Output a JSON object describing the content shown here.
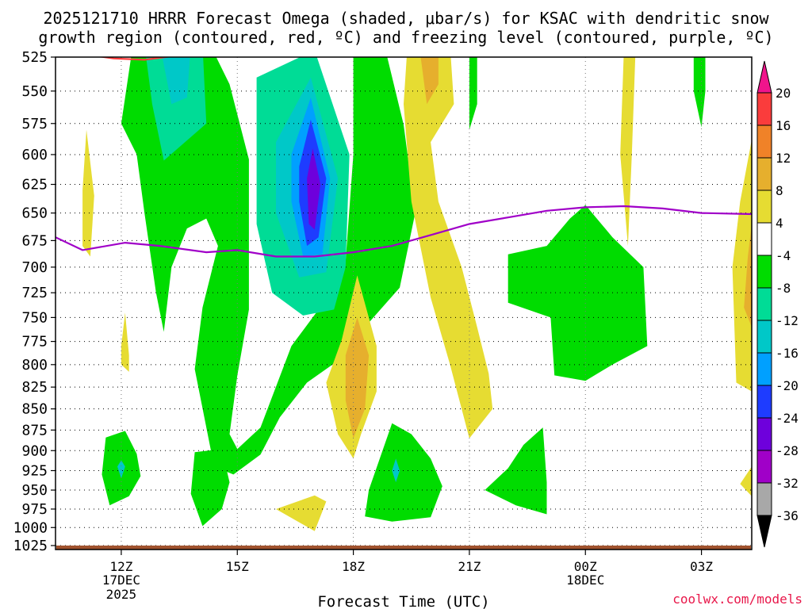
{
  "chart_data": {
    "type": "heatmap",
    "title_line1": "2025121710 HRRR Forecast Omega (shaded, μbar/s) for KSAC with dendritic snow",
    "title_line2": "growth region (contoured, red, ºC) and freezing level (contoured, purple, ºC)",
    "xlabel": "Forecast Time (UTC)",
    "credit": "coolwx.com/models",
    "x_range_hours": [
      10.3,
      28.3
    ],
    "x_ticks": [
      {
        "hour": 12,
        "label": "12Z",
        "sub1": "17DEC",
        "sub2": "2025"
      },
      {
        "hour": 15,
        "label": "15Z",
        "sub1": "",
        "sub2": ""
      },
      {
        "hour": 18,
        "label": "18Z",
        "sub1": "",
        "sub2": ""
      },
      {
        "hour": 21,
        "label": "21Z",
        "sub1": "",
        "sub2": ""
      },
      {
        "hour": 24,
        "label": "00Z",
        "sub1": "18DEC",
        "sub2": ""
      },
      {
        "hour": 27,
        "label": "03Z",
        "sub1": "",
        "sub2": ""
      }
    ],
    "y_levels_mb": [
      525,
      550,
      575,
      600,
      625,
      650,
      675,
      700,
      725,
      750,
      775,
      800,
      825,
      850,
      875,
      900,
      925,
      950,
      975,
      1000,
      1025
    ],
    "y_labels": [
      "525",
      "550",
      "575",
      "600",
      "625",
      "650",
      "675",
      "700",
      "725",
      "750",
      "775",
      "800",
      "825",
      "850",
      "875",
      "900",
      "925",
      "950",
      "975",
      "1000",
      "1025"
    ],
    "colorbar": {
      "bounds": [
        -36,
        -32,
        -28,
        -24,
        -20,
        -16,
        -12,
        -8,
        -4,
        4,
        8,
        12,
        16,
        20
      ],
      "labels": [
        "-36",
        "-32",
        "-28",
        "-24",
        "-20",
        "-16",
        "-12",
        "-8",
        "-4",
        "4",
        "8",
        "12",
        "16",
        "20"
      ],
      "colors": [
        "#a8a8a8",
        "#a000c8",
        "#6e00dc",
        "#1e3cff",
        "#00a0ff",
        "#00c8c8",
        "#00dc96",
        "#00dc00",
        "#ffffff",
        "#e6dc32",
        "#e6af2d",
        "#f08228",
        "#fa3c3c"
      ],
      "under_color": "#000000",
      "over_color": "#f0148c"
    },
    "freezing_level": {
      "color": "#a000c8",
      "points": [
        [
          10.3,
          672
        ],
        [
          11.0,
          684
        ],
        [
          12.1,
          677
        ],
        [
          13.0,
          680
        ],
        [
          14.2,
          686
        ],
        [
          15.0,
          684
        ],
        [
          16.0,
          690
        ],
        [
          17.0,
          690
        ],
        [
          18.0,
          686
        ],
        [
          19.0,
          680
        ],
        [
          20.0,
          670
        ],
        [
          21.0,
          660
        ],
        [
          22.0,
          654
        ],
        [
          23.0,
          648
        ],
        [
          24.0,
          645
        ],
        [
          25.0,
          644
        ],
        [
          26.0,
          646
        ],
        [
          27.0,
          650
        ],
        [
          28.3,
          651
        ]
      ]
    },
    "dgz_contour": {
      "color": "#ff3c3c",
      "points": [
        [
          11.3,
          524
        ],
        [
          11.8,
          526
        ],
        [
          12.6,
          527
        ],
        [
          13.4,
          524
        ]
      ]
    },
    "surface_color": "#a0522d",
    "shaded_regions": [
      {
        "cls": 7,
        "pts": [
          [
            12.3,
            516
          ],
          [
            14.3,
            516
          ],
          [
            14.8,
            545
          ],
          [
            15.3,
            604
          ],
          [
            15.3,
            742
          ],
          [
            15.0,
            812
          ],
          [
            14.8,
            880
          ],
          [
            15.0,
            898
          ],
          [
            15.6,
            872
          ],
          [
            16.4,
            780
          ],
          [
            17.1,
            742
          ],
          [
            17.8,
            695
          ],
          [
            18.0,
            600
          ],
          [
            18.0,
            516
          ],
          [
            18.8,
            516
          ],
          [
            19.3,
            576
          ],
          [
            19.6,
            650
          ],
          [
            19.2,
            720
          ],
          [
            18.3,
            760
          ],
          [
            17.8,
            790
          ],
          [
            16.8,
            820
          ],
          [
            16.1,
            860
          ],
          [
            15.6,
            905
          ],
          [
            14.9,
            930
          ],
          [
            14.4,
            920
          ],
          [
            13.9,
            805
          ],
          [
            14.1,
            740
          ],
          [
            14.5,
            680
          ],
          [
            14.2,
            655
          ],
          [
            13.7,
            664
          ],
          [
            13.3,
            700
          ],
          [
            13.1,
            765
          ],
          [
            12.9,
            725
          ],
          [
            12.6,
            650
          ],
          [
            12.4,
            600
          ],
          [
            12.0,
            575
          ],
          [
            12.3,
            516
          ]
        ]
      },
      {
        "cls": 7,
        "pts": [
          [
            13.9,
            902
          ],
          [
            14.6,
            898
          ],
          [
            14.8,
            940
          ],
          [
            14.6,
            975
          ],
          [
            14.1,
            998
          ],
          [
            13.8,
            955
          ],
          [
            13.9,
            902
          ]
        ]
      },
      {
        "cls": 7,
        "pts": [
          [
            11.6,
            884
          ],
          [
            12.1,
            876
          ],
          [
            12.4,
            904
          ],
          [
            12.5,
            932
          ],
          [
            12.2,
            958
          ],
          [
            11.7,
            970
          ],
          [
            11.5,
            930
          ],
          [
            11.6,
            884
          ]
        ]
      },
      {
        "cls": 7,
        "pts": [
          [
            18.4,
            950
          ],
          [
            19.0,
            867
          ],
          [
            19.5,
            880
          ],
          [
            20.0,
            910
          ],
          [
            20.3,
            945
          ],
          [
            20.0,
            986
          ],
          [
            19.0,
            992
          ],
          [
            18.3,
            985
          ],
          [
            18.4,
            950
          ]
        ]
      },
      {
        "cls": 7,
        "pts": [
          [
            23.0,
            680
          ],
          [
            23.6,
            655
          ],
          [
            24.0,
            643
          ],
          [
            24.7,
            672
          ],
          [
            25.5,
            700
          ],
          [
            25.6,
            780
          ],
          [
            24.7,
            800
          ],
          [
            24.0,
            818
          ],
          [
            23.2,
            812
          ],
          [
            23.1,
            750
          ],
          [
            22.0,
            735
          ],
          [
            22.0,
            688
          ],
          [
            23.0,
            680
          ]
        ]
      },
      {
        "cls": 7,
        "pts": [
          [
            21.4,
            950
          ],
          [
            22.0,
            922
          ],
          [
            22.4,
            893
          ],
          [
            22.9,
            872
          ],
          [
            23.0,
            940
          ],
          [
            23.0,
            982
          ],
          [
            22.2,
            970
          ],
          [
            21.4,
            950
          ]
        ]
      },
      {
        "cls": 7,
        "pts": [
          [
            21.0,
            516
          ],
          [
            21.2,
            516
          ],
          [
            21.2,
            560
          ],
          [
            21.0,
            580
          ],
          [
            21.0,
            516
          ]
        ]
      },
      {
        "cls": 7,
        "pts": [
          [
            26.8,
            516
          ],
          [
            27.1,
            516
          ],
          [
            27.1,
            550
          ],
          [
            27.0,
            578
          ],
          [
            26.8,
            550
          ],
          [
            26.8,
            516
          ]
        ]
      },
      {
        "cls": 6,
        "pts": [
          [
            12.6,
            516
          ],
          [
            14.1,
            516
          ],
          [
            14.2,
            575
          ],
          [
            13.1,
            605
          ],
          [
            12.8,
            560
          ],
          [
            12.6,
            516
          ]
        ]
      },
      {
        "cls": 6,
        "pts": [
          [
            15.5,
            540
          ],
          [
            17.0,
            520
          ],
          [
            17.9,
            600
          ],
          [
            17.8,
            700
          ],
          [
            17.5,
            742
          ],
          [
            16.7,
            748
          ],
          [
            15.9,
            725
          ],
          [
            15.5,
            660
          ],
          [
            15.5,
            540
          ]
        ]
      },
      {
        "cls": 5,
        "pts": [
          [
            13.0,
            516
          ],
          [
            13.8,
            516
          ],
          [
            13.7,
            555
          ],
          [
            13.3,
            560
          ],
          [
            13.0,
            516
          ]
        ]
      },
      {
        "cls": 5,
        "pts": [
          [
            16.0,
            590
          ],
          [
            16.9,
            540
          ],
          [
            17.6,
            620
          ],
          [
            17.3,
            705
          ],
          [
            16.6,
            710
          ],
          [
            16.0,
            650
          ],
          [
            16.0,
            590
          ]
        ]
      },
      {
        "cls": 5,
        "pts": [
          [
            12.0,
            912
          ],
          [
            12.1,
            920
          ],
          [
            12.0,
            935
          ],
          [
            11.9,
            920
          ],
          [
            12.0,
            912
          ]
        ]
      },
      {
        "cls": 5,
        "pts": [
          [
            19.1,
            910
          ],
          [
            19.2,
            925
          ],
          [
            19.1,
            940
          ],
          [
            19.0,
            925
          ],
          [
            19.1,
            910
          ]
        ]
      },
      {
        "cls": 4,
        "pts": [
          [
            16.4,
            600
          ],
          [
            16.9,
            555
          ],
          [
            17.4,
            620
          ],
          [
            17.2,
            688
          ],
          [
            16.7,
            690
          ],
          [
            16.4,
            640
          ],
          [
            16.4,
            600
          ]
        ]
      },
      {
        "cls": 3,
        "pts": [
          [
            16.6,
            610
          ],
          [
            16.9,
            572
          ],
          [
            17.3,
            620
          ],
          [
            17.1,
            672
          ],
          [
            16.8,
            680
          ],
          [
            16.6,
            640
          ],
          [
            16.6,
            610
          ]
        ]
      },
      {
        "cls": 2,
        "pts": [
          [
            16.8,
            620
          ],
          [
            16.95,
            595
          ],
          [
            17.15,
            625
          ],
          [
            17.0,
            665
          ],
          [
            16.85,
            660
          ],
          [
            16.8,
            620
          ]
        ]
      },
      {
        "cls": 9,
        "pts": [
          [
            19.4,
            516
          ],
          [
            20.5,
            516
          ],
          [
            20.6,
            560
          ],
          [
            20.0,
            590
          ],
          [
            20.2,
            640
          ],
          [
            20.8,
            700
          ],
          [
            21.2,
            760
          ],
          [
            21.5,
            810
          ],
          [
            21.6,
            850
          ],
          [
            21.0,
            885
          ],
          [
            20.5,
            800
          ],
          [
            20.0,
            730
          ],
          [
            19.5,
            640
          ],
          [
            19.3,
            560
          ],
          [
            19.4,
            516
          ]
        ]
      },
      {
        "cls": 10,
        "pts": [
          [
            19.7,
            516
          ],
          [
            20.2,
            516
          ],
          [
            20.2,
            545
          ],
          [
            19.9,
            560
          ],
          [
            19.7,
            516
          ]
        ]
      },
      {
        "cls": 9,
        "pts": [
          [
            17.7,
            773
          ],
          [
            18.1,
            708
          ],
          [
            18.6,
            780
          ],
          [
            18.6,
            830
          ],
          [
            18.2,
            880
          ],
          [
            18.0,
            910
          ],
          [
            17.6,
            880
          ],
          [
            17.3,
            820
          ],
          [
            17.7,
            773
          ]
        ]
      },
      {
        "cls": 10,
        "pts": [
          [
            17.8,
            790
          ],
          [
            18.1,
            750
          ],
          [
            18.4,
            790
          ],
          [
            18.3,
            850
          ],
          [
            18.0,
            885
          ],
          [
            17.8,
            840
          ],
          [
            17.8,
            790
          ]
        ]
      },
      {
        "cls": 9,
        "pts": [
          [
            16.0,
            975
          ],
          [
            17.0,
            957
          ],
          [
            17.3,
            965
          ],
          [
            17.0,
            1005
          ],
          [
            16.0,
            975
          ]
        ]
      },
      {
        "cls": 9,
        "pts": [
          [
            11.0,
            630
          ],
          [
            11.1,
            580
          ],
          [
            11.3,
            635
          ],
          [
            11.2,
            690
          ],
          [
            11.0,
            680
          ],
          [
            11.0,
            630
          ]
        ]
      },
      {
        "cls": 9,
        "pts": [
          [
            12.0,
            780
          ],
          [
            12.1,
            745
          ],
          [
            12.2,
            790
          ],
          [
            12.2,
            808
          ],
          [
            12.0,
            800
          ],
          [
            12.0,
            780
          ]
        ]
      },
      {
        "cls": 9,
        "pts": [
          [
            25.0,
            516
          ],
          [
            25.3,
            516
          ],
          [
            25.2,
            600
          ],
          [
            25.1,
            680
          ],
          [
            24.9,
            600
          ],
          [
            25.0,
            516
          ]
        ]
      },
      {
        "cls": 9,
        "pts": [
          [
            28.3,
            588
          ],
          [
            28.3,
            830
          ],
          [
            27.9,
            820
          ],
          [
            27.8,
            700
          ],
          [
            28.0,
            640
          ],
          [
            28.3,
            588
          ]
        ]
      },
      {
        "cls": 10,
        "pts": [
          [
            28.3,
            660
          ],
          [
            28.3,
            760
          ],
          [
            28.1,
            740
          ],
          [
            28.2,
            690
          ],
          [
            28.3,
            660
          ]
        ]
      },
      {
        "cls": 9,
        "pts": [
          [
            28.0,
            942
          ],
          [
            28.3,
            920
          ],
          [
            28.3,
            958
          ],
          [
            28.0,
            942
          ]
        ]
      }
    ]
  }
}
